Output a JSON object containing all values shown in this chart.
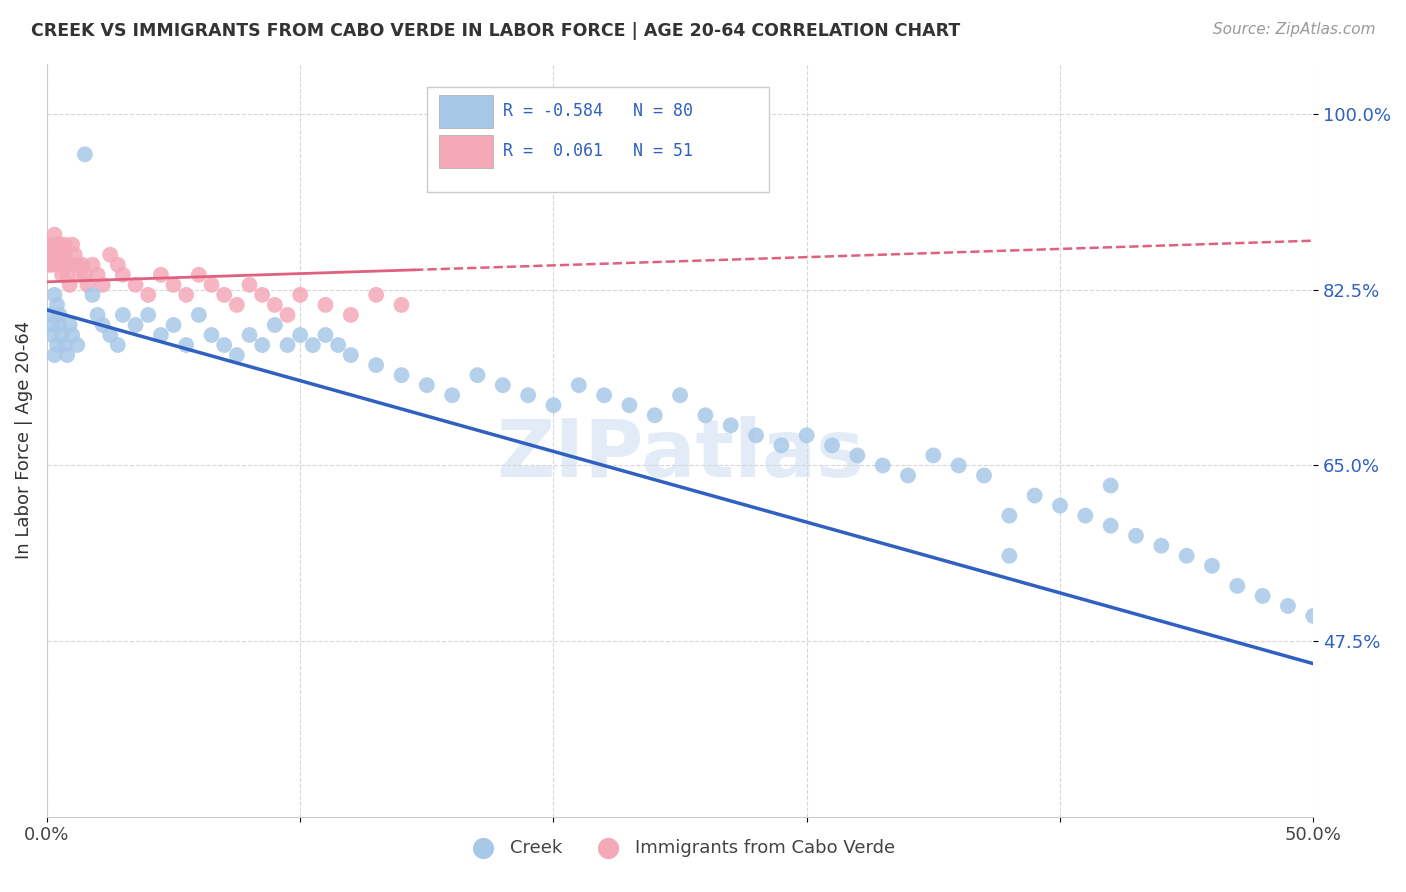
{
  "title": "CREEK VS IMMIGRANTS FROM CABO VERDE IN LABOR FORCE | AGE 20-64 CORRELATION CHART",
  "source": "Source: ZipAtlas.com",
  "ylabel": "In Labor Force | Age 20-64",
  "xlim": [
    0.0,
    0.5
  ],
  "ylim": [
    0.3,
    1.05
  ],
  "ytick_positions": [
    0.475,
    0.65,
    0.825,
    1.0
  ],
  "yticklabels": [
    "47.5%",
    "65.0%",
    "82.5%",
    "100.0%"
  ],
  "background_color": "#ffffff",
  "grid_color": "#cccccc",
  "watermark": "ZIPatlas",
  "creek_color": "#a8c8e8",
  "cabo_color": "#f4a8b8",
  "creek_line_color": "#3060c0",
  "cabo_line_color": "#e06080",
  "creek_R": -0.584,
  "cabo_R": 0.061,
  "creek_N": 80,
  "cabo_N": 51,
  "creek_x": [
    0.001,
    0.002,
    0.002,
    0.003,
    0.003,
    0.004,
    0.004,
    0.005,
    0.005,
    0.006,
    0.007,
    0.008,
    0.009,
    0.01,
    0.012,
    0.015,
    0.018,
    0.02,
    0.022,
    0.025,
    0.028,
    0.03,
    0.035,
    0.04,
    0.045,
    0.05,
    0.055,
    0.06,
    0.065,
    0.07,
    0.075,
    0.08,
    0.085,
    0.09,
    0.095,
    0.1,
    0.105,
    0.11,
    0.115,
    0.12,
    0.13,
    0.14,
    0.15,
    0.16,
    0.17,
    0.18,
    0.19,
    0.2,
    0.21,
    0.22,
    0.23,
    0.24,
    0.25,
    0.26,
    0.27,
    0.28,
    0.29,
    0.3,
    0.31,
    0.32,
    0.33,
    0.34,
    0.35,
    0.36,
    0.37,
    0.38,
    0.39,
    0.4,
    0.41,
    0.42,
    0.43,
    0.44,
    0.45,
    0.46,
    0.47,
    0.48,
    0.49,
    0.5,
    0.38,
    0.42
  ],
  "creek_y": [
    0.8,
    0.79,
    0.78,
    0.82,
    0.76,
    0.81,
    0.77,
    0.8,
    0.79,
    0.78,
    0.77,
    0.76,
    0.79,
    0.78,
    0.77,
    0.96,
    0.82,
    0.8,
    0.79,
    0.78,
    0.77,
    0.8,
    0.79,
    0.8,
    0.78,
    0.79,
    0.77,
    0.8,
    0.78,
    0.77,
    0.76,
    0.78,
    0.77,
    0.79,
    0.77,
    0.78,
    0.77,
    0.78,
    0.77,
    0.76,
    0.75,
    0.74,
    0.73,
    0.72,
    0.74,
    0.73,
    0.72,
    0.71,
    0.73,
    0.72,
    0.71,
    0.7,
    0.72,
    0.7,
    0.69,
    0.68,
    0.67,
    0.68,
    0.67,
    0.66,
    0.65,
    0.64,
    0.66,
    0.65,
    0.64,
    0.6,
    0.62,
    0.61,
    0.6,
    0.59,
    0.58,
    0.57,
    0.56,
    0.55,
    0.53,
    0.52,
    0.51,
    0.5,
    0.56,
    0.63
  ],
  "cabo_x": [
    0.001,
    0.001,
    0.002,
    0.002,
    0.002,
    0.003,
    0.003,
    0.003,
    0.004,
    0.004,
    0.004,
    0.005,
    0.005,
    0.006,
    0.006,
    0.007,
    0.007,
    0.008,
    0.008,
    0.009,
    0.01,
    0.011,
    0.012,
    0.013,
    0.014,
    0.015,
    0.016,
    0.018,
    0.02,
    0.022,
    0.025,
    0.028,
    0.03,
    0.035,
    0.04,
    0.045,
    0.05,
    0.055,
    0.06,
    0.065,
    0.07,
    0.075,
    0.08,
    0.085,
    0.09,
    0.095,
    0.1,
    0.11,
    0.12,
    0.13,
    0.14
  ],
  "cabo_y": [
    0.86,
    0.85,
    0.87,
    0.86,
    0.85,
    0.88,
    0.87,
    0.86,
    0.87,
    0.86,
    0.85,
    0.87,
    0.86,
    0.85,
    0.84,
    0.87,
    0.86,
    0.85,
    0.84,
    0.83,
    0.87,
    0.86,
    0.85,
    0.84,
    0.85,
    0.84,
    0.83,
    0.85,
    0.84,
    0.83,
    0.86,
    0.85,
    0.84,
    0.83,
    0.82,
    0.84,
    0.83,
    0.82,
    0.84,
    0.83,
    0.82,
    0.81,
    0.83,
    0.82,
    0.81,
    0.8,
    0.82,
    0.81,
    0.8,
    0.82,
    0.81
  ]
}
